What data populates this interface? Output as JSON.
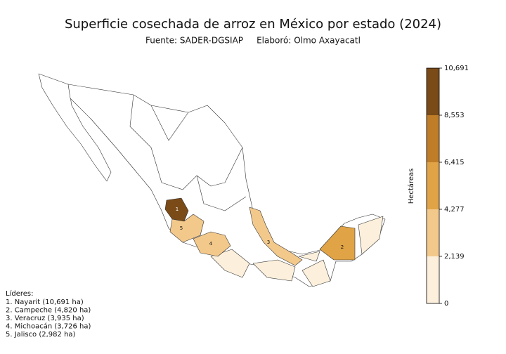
{
  "chart_data": {
    "type": "choropleth",
    "title": "Superficie cosechada de arroz en México por estado (2024)",
    "subtitle": "Fuente: SADER-DGSIAP     Elaboró: Olmo Axayacatl",
    "colorbar": {
      "label": "Hectáreas",
      "lim": [
        0,
        10691
      ],
      "ticks": [
        0,
        {
          "value": 2139,
          "label": "2,139"
        },
        {
          "value": 4277,
          "label": "4,277"
        },
        {
          "value": 6415,
          "label": "6,415"
        },
        {
          "value": 8553,
          "label": "8,553"
        },
        {
          "value": 10691,
          "label": "10,691"
        }
      ],
      "colors": [
        "#fcf0dc",
        "#f3c98b",
        "#e0a346",
        "#c07d27",
        "#7a4a17"
      ]
    },
    "map_labels": [
      "1",
      "2",
      "3",
      "4",
      "5"
    ],
    "leaders_title": "Líderes:",
    "leaders": [
      "1. Nayarit (10,691 ha)",
      "2. Campeche (4,820 ha)",
      "3. Veracruz (3,935 ha)",
      "4. Michoacán (3,726 ha)",
      "5. Jalisco (2,982 ha)"
    ]
  }
}
